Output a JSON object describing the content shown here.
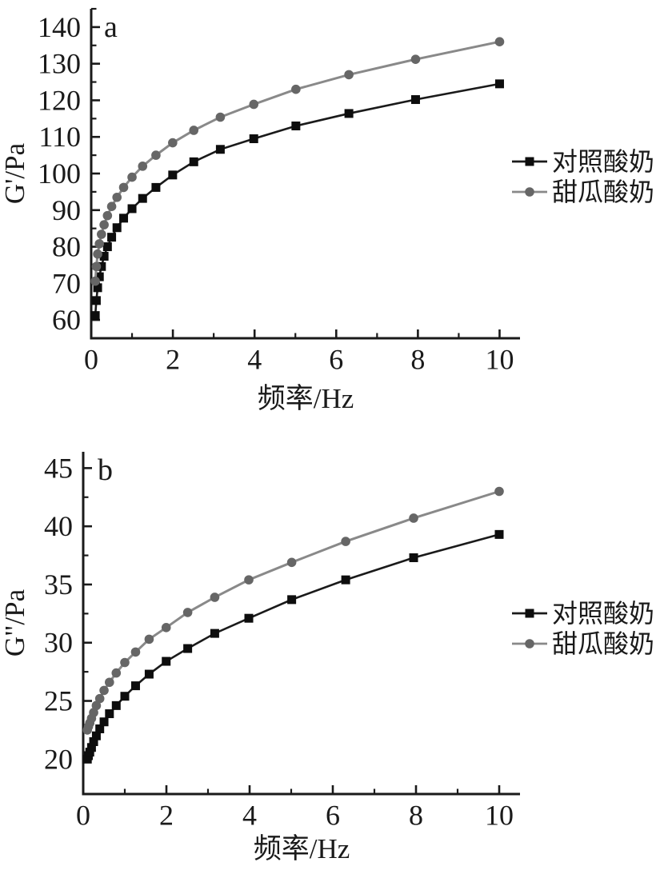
{
  "figure": {
    "background": "#ffffff",
    "text_color": "#1a1a1a",
    "axis_color": "#1a1a1a"
  },
  "chart_data": [
    {
      "type": "line",
      "panel_label": "a",
      "title": "",
      "xlabel": "频率/Hz",
      "ylabel": "G'/Pa",
      "xlim": [
        0,
        10.5
      ],
      "ylim": [
        55,
        145
      ],
      "grid": false,
      "legend_position": "right",
      "x_major_ticks": [
        0,
        2,
        4,
        6,
        8,
        10
      ],
      "x_tick_labels": [
        "0",
        "2",
        "4",
        "6",
        "8",
        "10"
      ],
      "x_minor_ticks": [
        1,
        3,
        5,
        7,
        9
      ],
      "y_major_ticks": [
        60,
        70,
        80,
        90,
        100,
        110,
        120,
        130,
        140
      ],
      "y_minor_ticks": [
        65,
        75,
        85,
        95,
        105,
        115,
        125,
        135,
        145
      ],
      "x": [
        0.1,
        0.126,
        0.158,
        0.2,
        0.251,
        0.316,
        0.398,
        0.501,
        0.631,
        0.794,
        1.0,
        1.259,
        1.585,
        1.995,
        2.512,
        3.162,
        3.981,
        5.012,
        6.31,
        7.943,
        10.0
      ],
      "series": [
        {
          "name": "对照酸奶",
          "marker": "square",
          "color": "#0d0d0d",
          "line_color": "#1a1a1a",
          "values": [
            61.2,
            65.3,
            68.8,
            71.8,
            74.6,
            77.4,
            80.0,
            82.6,
            85.2,
            87.8,
            90.4,
            93.2,
            96.2,
            99.6,
            103.2,
            106.6,
            109.5,
            113.0,
            116.4,
            120.2,
            124.5
          ]
        },
        {
          "name": "甜瓜酸奶",
          "marker": "circle",
          "color": "#666666",
          "line_color": "#898989",
          "values": [
            70.6,
            74.6,
            78.0,
            80.8,
            83.4,
            86.0,
            88.5,
            91.0,
            93.5,
            96.2,
            99.0,
            102.0,
            105.0,
            108.4,
            111.8,
            115.4,
            118.9,
            123.0,
            127.0,
            131.2,
            136.0
          ]
        }
      ]
    },
    {
      "type": "line",
      "panel_label": "b",
      "title": "",
      "xlabel": "频率/Hz",
      "ylabel": "G\"/Pa",
      "xlim": [
        0,
        10.5
      ],
      "ylim": [
        17,
        46.4
      ],
      "grid": false,
      "legend_position": "right",
      "x_major_ticks": [
        0,
        2,
        4,
        6,
        8,
        10
      ],
      "x_tick_labels": [
        "0",
        "2",
        "4",
        "6",
        "8",
        "10"
      ],
      "x_minor_ticks": [
        1,
        3,
        5,
        7,
        9
      ],
      "y_major_ticks": [
        20,
        25,
        30,
        35,
        40,
        45
      ],
      "y_minor_ticks": [
        22.5,
        27.5,
        32.5,
        37.5,
        42.5
      ],
      "x": [
        0.1,
        0.126,
        0.158,
        0.2,
        0.251,
        0.316,
        0.398,
        0.501,
        0.631,
        0.794,
        1.0,
        1.259,
        1.585,
        1.995,
        2.512,
        3.162,
        3.981,
        5.012,
        6.31,
        7.943,
        10.0
      ],
      "series": [
        {
          "name": "对照酸奶",
          "marker": "square",
          "color": "#0d0d0d",
          "line_color": "#1a1a1a",
          "values": [
            20.0,
            20.3,
            20.6,
            21.0,
            21.5,
            22.0,
            22.6,
            23.2,
            23.9,
            24.6,
            25.4,
            26.3,
            27.3,
            28.4,
            29.5,
            30.8,
            32.1,
            33.7,
            35.4,
            37.3,
            39.3
          ]
        },
        {
          "name": "甜瓜酸奶",
          "marker": "circle",
          "color": "#666666",
          "line_color": "#898989",
          "values": [
            22.5,
            22.8,
            23.1,
            23.5,
            24.0,
            24.6,
            25.2,
            25.9,
            26.6,
            27.4,
            28.3,
            29.2,
            30.3,
            31.3,
            32.6,
            33.9,
            35.4,
            36.9,
            38.7,
            40.7,
            43.0
          ]
        }
      ]
    }
  ]
}
